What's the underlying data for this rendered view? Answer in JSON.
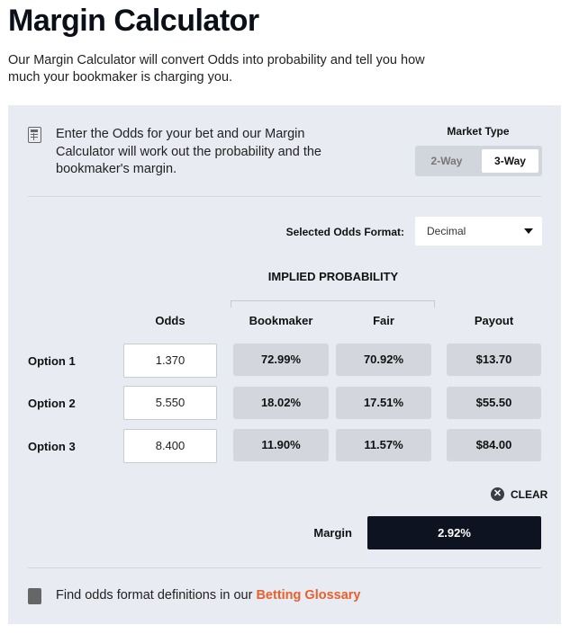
{
  "page": {
    "title": "Margin Calculator",
    "description": "Our Margin Calculator will convert Odds into probability and tell you how much your bookmaker is charging you."
  },
  "calculator": {
    "intro": "Enter the Odds for your bet and our Margin Calculator will work out the probability and the bookmaker's margin.",
    "market_type": {
      "label": "Market Type",
      "options": [
        "2-Way",
        "3-Way"
      ],
      "selected": "3-Way"
    },
    "odds_format": {
      "label": "Selected Odds Format:",
      "value": "Decimal"
    },
    "implied_probability_label": "IMPLIED PROBABILITY",
    "columns": {
      "odds": "Odds",
      "bookmaker": "Bookmaker",
      "fair": "Fair",
      "payout": "Payout"
    },
    "rows": [
      {
        "label": "Option 1",
        "odds": "1.370",
        "bookmaker": "72.99%",
        "fair": "70.92%",
        "payout": "$13.70"
      },
      {
        "label": "Option 2",
        "odds": "5.550",
        "bookmaker": "18.02%",
        "fair": "17.51%",
        "payout": "$55.50"
      },
      {
        "label": "Option 3",
        "odds": "8.400",
        "bookmaker": "11.90%",
        "fair": "11.57%",
        "payout": "$84.00"
      }
    ],
    "clear_label": "CLEAR",
    "margin": {
      "label": "Margin",
      "value": "2.92%"
    },
    "glossary": {
      "text": "Find odds format definitions in our ",
      "link": "Betting Glossary"
    }
  },
  "colors": {
    "panel": "#e8ebf2",
    "margin_bg": "#0d1320",
    "link": "#e8602c"
  }
}
